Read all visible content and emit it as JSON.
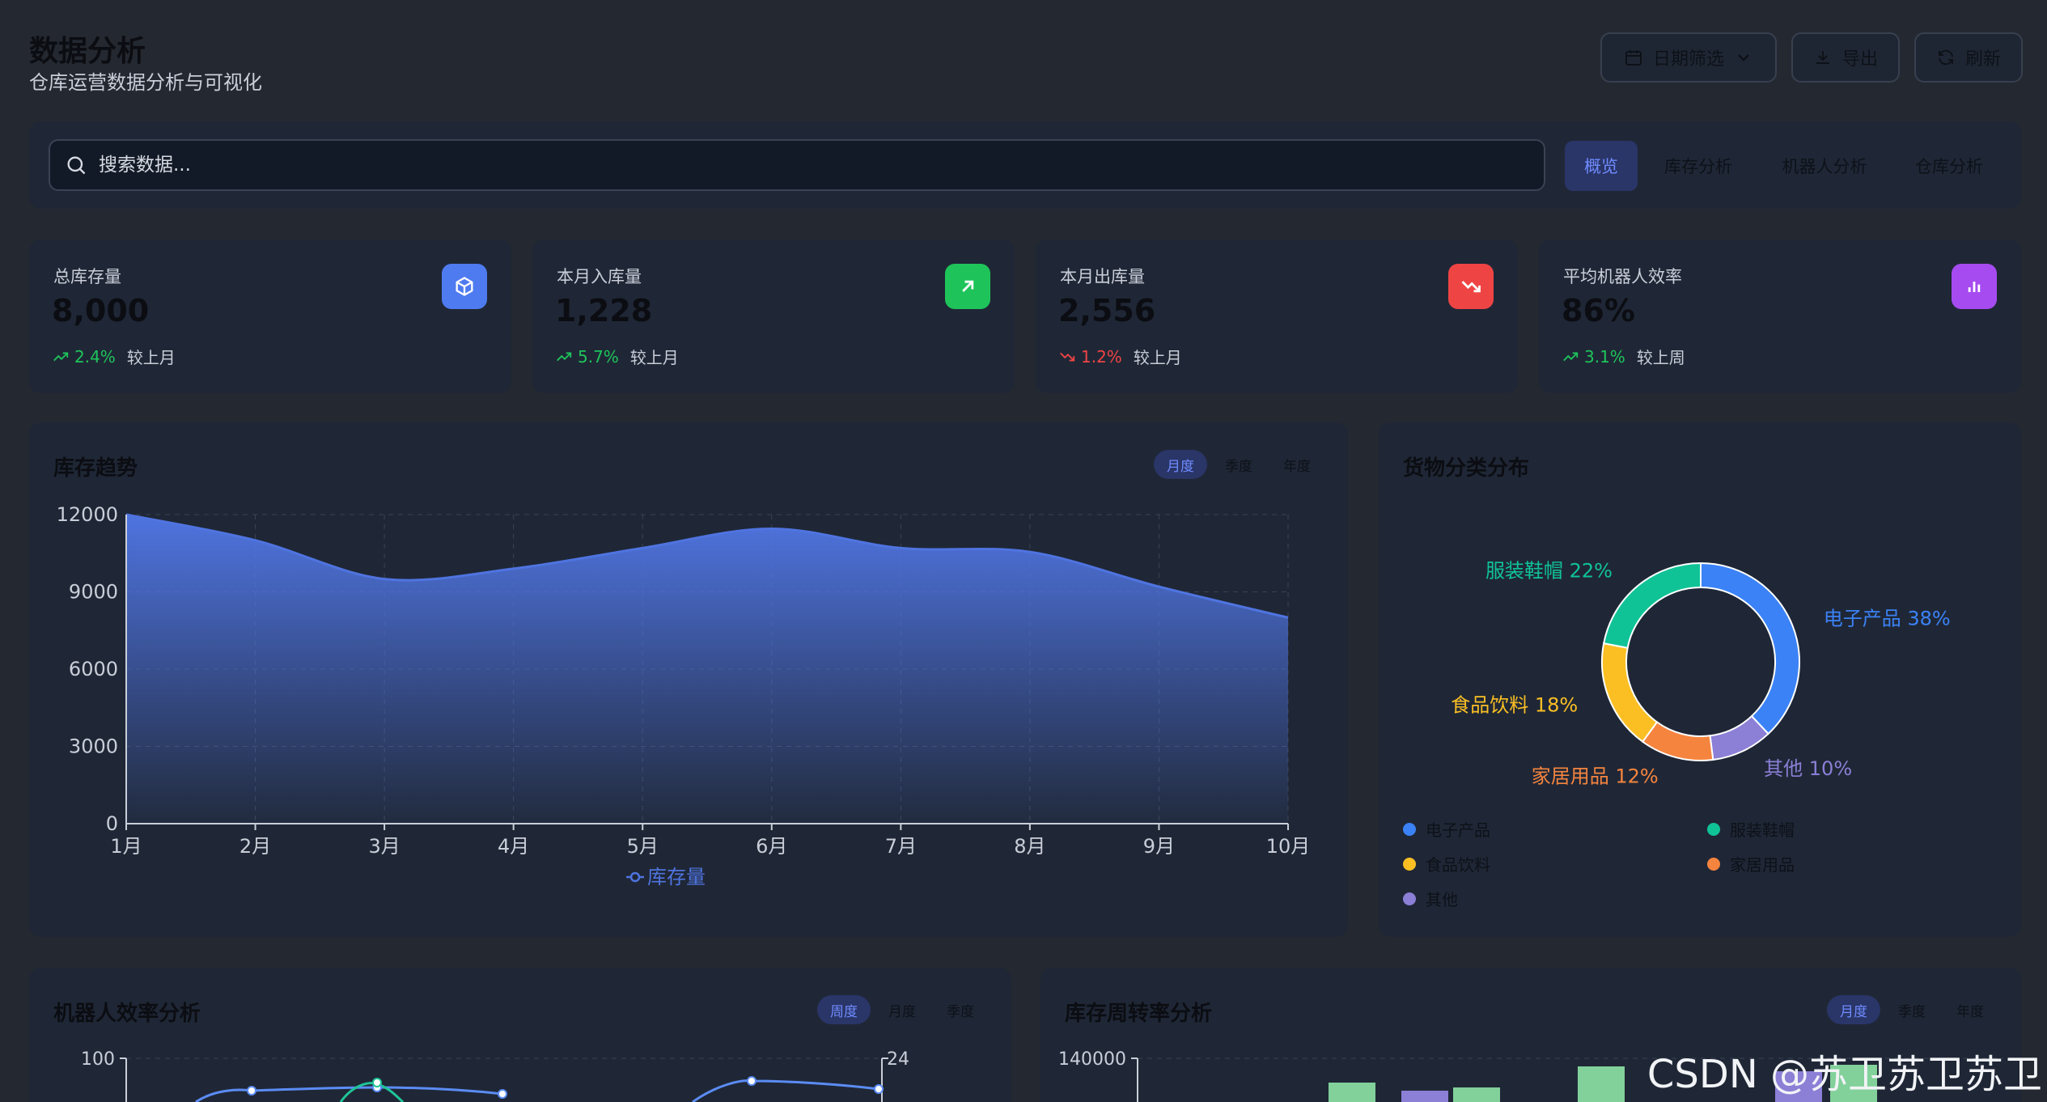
{
  "header": {
    "title": "数据分析",
    "subtitle": "仓库运营数据分析与可视化",
    "date_filter_label": "日期筛选",
    "export_label": "导出",
    "refresh_label": "刷新"
  },
  "search": {
    "placeholder": "搜索数据..."
  },
  "tabs": [
    {
      "label": "概览",
      "active": true
    },
    {
      "label": "库存分析"
    },
    {
      "label": "机器人分析"
    },
    {
      "label": "仓库分析"
    }
  ],
  "kpis": [
    {
      "label": "总库存量",
      "value": "8,000",
      "change": "2.4%",
      "direction": "up",
      "period": "较上月",
      "icon": "cube-icon",
      "color": "#4f7bf0"
    },
    {
      "label": "本月入库量",
      "value": "1,228",
      "change": "5.7%",
      "direction": "up",
      "period": "较上月",
      "icon": "arrow-up-right-icon",
      "color": "#1ec45a"
    },
    {
      "label": "本月出库量",
      "value": "2,556",
      "change": "1.2%",
      "direction": "down",
      "period": "较上月",
      "icon": "trending-down-icon",
      "color": "#ef4444"
    },
    {
      "label": "平均机器人效率",
      "value": "86%",
      "change": "3.1%",
      "direction": "up",
      "period": "较上周",
      "icon": "bar-chart-icon",
      "color": "#a64bf0"
    }
  ],
  "inventory_trend": {
    "title": "库存趋势",
    "periods": [
      "月度",
      "季度",
      "年度"
    ],
    "active_period": 0
  },
  "category_dist": {
    "title": "货物分类分布"
  },
  "robot_efficiency": {
    "title": "机器人效率分析",
    "periods": [
      "周度",
      "月度",
      "季度"
    ],
    "active_period": 0,
    "y_top_label": "100",
    "y2_top_label": "24"
  },
  "turnover": {
    "title": "库存周转率分析",
    "periods": [
      "月度",
      "季度",
      "年度"
    ],
    "active_period": 0,
    "y_top_label": "140000"
  },
  "watermark": "CSDN @苏卫苏卫苏卫",
  "chart_data": [
    {
      "type": "area",
      "x": [
        "1月",
        "2月",
        "3月",
        "4月",
        "5月",
        "6月",
        "7月",
        "8月",
        "9月",
        "10月"
      ],
      "series": [
        {
          "name": "库存量",
          "values": [
            12000,
            11000,
            9500,
            9900,
            10700,
            11450,
            10700,
            10550,
            9200,
            8000
          ]
        }
      ],
      "ylim": [
        0,
        12000
      ],
      "yticks": [
        0,
        3000,
        6000,
        9000,
        12000
      ],
      "grid": true,
      "legend": "bottom",
      "color": "#4f74e0"
    },
    {
      "type": "pie",
      "donut": true,
      "slices": [
        {
          "name": "电子产品",
          "value": 38,
          "label": "电子产品 38%",
          "color": "#3b82f6"
        },
        {
          "name": "其他",
          "value": 10,
          "label": "其他 10%",
          "color": "#8b7fd6"
        },
        {
          "name": "家居用品",
          "value": 12,
          "label": "家居用品 12%",
          "color": "#f5843f"
        },
        {
          "name": "食品饮料",
          "value": 18,
          "label": "食品饮料 18%",
          "color": "#fbbf24"
        },
        {
          "name": "服装鞋帽",
          "value": 22,
          "label": "服装鞋帽 22%",
          "color": "#10c397"
        }
      ],
      "legend": [
        "电子产品",
        "服装鞋帽",
        "食品饮料",
        "家居用品",
        "其他"
      ],
      "legend_placement": "bottom"
    }
  ]
}
